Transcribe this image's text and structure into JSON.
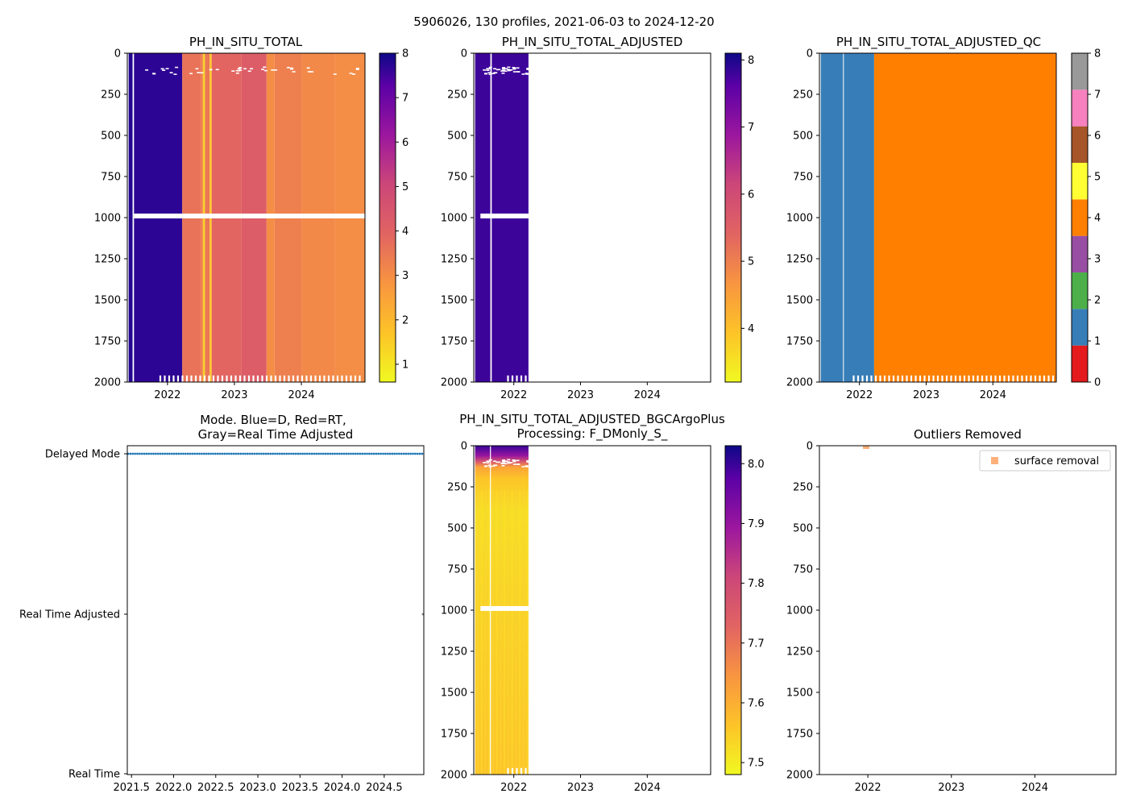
{
  "figure": {
    "suptitle": "5906026, 130 profiles, 2021-06-03 to 2024-12-20"
  },
  "chart_data": [
    {
      "id": "ph_raw",
      "type": "heatmap",
      "title": "PH_IN_SITU_TOTAL",
      "xlim": [
        2021.4,
        2024.95
      ],
      "ylim": [
        2000,
        0
      ],
      "x_ticks": [
        2022,
        2023,
        2024
      ],
      "y_ticks": [
        0,
        250,
        500,
        750,
        1000,
        1250,
        1500,
        1750,
        2000
      ],
      "colormap": "plasma_r",
      "colorbar": {
        "range": [
          0.6,
          8.0
        ],
        "ticks": [
          1,
          2,
          3,
          4,
          5,
          6,
          7,
          8
        ]
      },
      "segments": [
        {
          "x": [
            2021.42,
            2021.48
          ],
          "value": 7.8
        },
        {
          "x": [
            2021.48,
            2021.5
          ],
          "value": null
        },
        {
          "x": [
            2021.5,
            2022.22
          ],
          "value": 7.7
        },
        {
          "x": [
            2022.22,
            2022.5
          ],
          "value": 3.6
        },
        {
          "x": [
            2022.5,
            2022.53
          ],
          "value": 3.3
        },
        {
          "x": [
            2022.53,
            2022.56
          ],
          "value": 1.4
        },
        {
          "x": [
            2022.56,
            2022.63
          ],
          "value": 3.5
        },
        {
          "x": [
            2022.63,
            2022.66
          ],
          "value": 1.6
        },
        {
          "x": [
            2022.66,
            2023.1
          ],
          "value": 3.9
        },
        {
          "x": [
            2023.1,
            2023.48
          ],
          "value": 4.2
        },
        {
          "x": [
            2023.48,
            2023.6
          ],
          "value": 3.0
        },
        {
          "x": [
            2023.6,
            2024.0
          ],
          "value": 3.3
        },
        {
          "x": [
            2024.0,
            2024.5
          ],
          "value": 3.1
        },
        {
          "x": [
            2024.5,
            2024.97
          ],
          "value": 3.0
        }
      ],
      "gap_rows": [
        {
          "depth": 990,
          "x": [
            2021.5,
            2024.97
          ]
        }
      ],
      "sparse_rows": {
        "depth_range": [
          80,
          125
        ],
        "x": [
          2021.5,
          2024.97
        ]
      },
      "bottom_gaps": {
        "depth": 1960,
        "x": [
          2021.88,
          2024.9
        ]
      }
    },
    {
      "id": "ph_adj",
      "type": "heatmap",
      "title": "PH_IN_SITU_TOTAL_ADJUSTED",
      "xlim": [
        2021.4,
        2024.95
      ],
      "ylim": [
        2000,
        0
      ],
      "x_ticks": [
        2022,
        2023,
        2024
      ],
      "y_ticks": [
        0,
        250,
        500,
        750,
        1000,
        1250,
        1500,
        1750,
        2000
      ],
      "colormap": "plasma_r",
      "colorbar": {
        "range": [
          3.2,
          8.1
        ],
        "ticks": [
          4,
          5,
          6,
          7,
          8
        ]
      },
      "segments": [
        {
          "x": [
            2021.42,
            2021.65
          ],
          "value": 7.8
        },
        {
          "x": [
            2021.65,
            2021.67
          ],
          "value": null
        },
        {
          "x": [
            2021.67,
            2022.22
          ],
          "value": 7.8
        }
      ],
      "gap_rows": [
        {
          "depth": 990,
          "x": [
            2021.5,
            2022.22
          ]
        }
      ],
      "sparse_rows": {
        "depth_range": [
          80,
          125
        ],
        "x": [
          2021.5,
          2022.22
        ]
      },
      "bottom_gaps": {
        "depth": 1960,
        "x": [
          2021.9,
          2022.2
        ]
      }
    },
    {
      "id": "ph_adj_qc",
      "type": "heatmap",
      "title": "PH_IN_SITU_TOTAL_ADJUSTED_QC",
      "xlim": [
        2021.4,
        2024.95
      ],
      "ylim": [
        2000,
        0
      ],
      "x_ticks": [
        2022,
        2023,
        2024
      ],
      "y_ticks": [
        0,
        250,
        500,
        750,
        1000,
        1250,
        1500,
        1750,
        2000
      ],
      "colormap": "qc_categorical",
      "colorbar": {
        "range": [
          0,
          8
        ],
        "ticks": [
          0,
          1,
          2,
          3,
          4,
          5,
          6,
          7,
          8
        ],
        "categories": [
          "#e41a1c",
          "#377eb8",
          "#4daf4a",
          "#984ea3",
          "#ff7f00",
          "#ffff33",
          "#a65628",
          "#f781bf",
          "#999999"
        ]
      },
      "segments": [
        {
          "x": [
            2021.42,
            2022.22
          ],
          "qc": 1
        },
        {
          "x": [
            2022.22,
            2024.97
          ],
          "qc": 4
        }
      ],
      "bottom_gaps": {
        "depth": 1960,
        "x": [
          2021.9,
          2024.9
        ]
      }
    },
    {
      "id": "mode",
      "type": "scatter",
      "title": "Mode. Blue=D, Red=RT,",
      "title_line2": "Gray=Real Time Adjusted",
      "xlim": [
        2021.45,
        2024.97
      ],
      "x_ticks": [
        "2021.5",
        "2022.0",
        "2022.5",
        "2023.0",
        "2023.5",
        "2024.0",
        "2024.5"
      ],
      "y_categories": [
        "Delayed Mode",
        "Real Time Adjusted",
        "Real Time"
      ],
      "series": [
        {
          "name": "D",
          "color": "#1f77b4",
          "y": "Delayed Mode",
          "x_range": [
            2021.46,
            2024.95
          ],
          "count": 129
        },
        {
          "name": "Adjusted",
          "color": "#808080",
          "y": "Real Time Adjusted",
          "x": [
            2024.96
          ]
        }
      ]
    },
    {
      "id": "ph_bgc",
      "type": "heatmap",
      "title": "PH_IN_SITU_TOTAL_ADJUSTED_BGCArgoPlus",
      "title_line2": "Processing: F_DMonly_S_",
      "xlim": [
        2021.4,
        2024.95
      ],
      "ylim": [
        2000,
        0
      ],
      "x_ticks": [
        2022,
        2023,
        2024
      ],
      "y_ticks": [
        0,
        250,
        500,
        750,
        1000,
        1250,
        1500,
        1750,
        2000
      ],
      "colormap": "plasma_r",
      "colorbar": {
        "range": [
          7.48,
          8.03
        ],
        "ticks": [
          "7.5",
          "7.6",
          "7.7",
          "7.8",
          "7.9",
          "8.0"
        ]
      },
      "x_extent": [
        2021.42,
        2022.22
      ],
      "depth_profile": [
        {
          "depth": 0,
          "value": 8.0
        },
        {
          "depth": 60,
          "value": 7.9
        },
        {
          "depth": 100,
          "value": 7.75
        },
        {
          "depth": 130,
          "value": 7.62
        },
        {
          "depth": 200,
          "value": 7.56
        },
        {
          "depth": 400,
          "value": 7.52
        },
        {
          "depth": 1000,
          "value": 7.54
        },
        {
          "depth": 2000,
          "value": 7.56
        }
      ],
      "gap_col": [
        2021.65,
        2021.67
      ],
      "gap_rows": [
        {
          "depth": 990,
          "x": [
            2021.5,
            2022.22
          ]
        }
      ],
      "sparse_rows": {
        "depth_range": [
          80,
          125
        ],
        "x": [
          2021.5,
          2022.22
        ]
      },
      "bottom_gaps": {
        "depth": 1960,
        "x": [
          2021.9,
          2022.2
        ]
      }
    },
    {
      "id": "outliers",
      "type": "scatter",
      "title": "Outliers Removed",
      "xlim": [
        2021.42,
        2024.97
      ],
      "ylim": [
        2000,
        0
      ],
      "x_ticks": [
        2022,
        2023,
        2024
      ],
      "y_ticks": [
        0,
        250,
        500,
        750,
        1000,
        1250,
        1500,
        1750,
        2000
      ],
      "legend": {
        "label": "surface removal",
        "color": "#ffb07a",
        "location": "upper right"
      },
      "points": [
        {
          "x": 2021.98,
          "y": 2
        }
      ]
    }
  ]
}
